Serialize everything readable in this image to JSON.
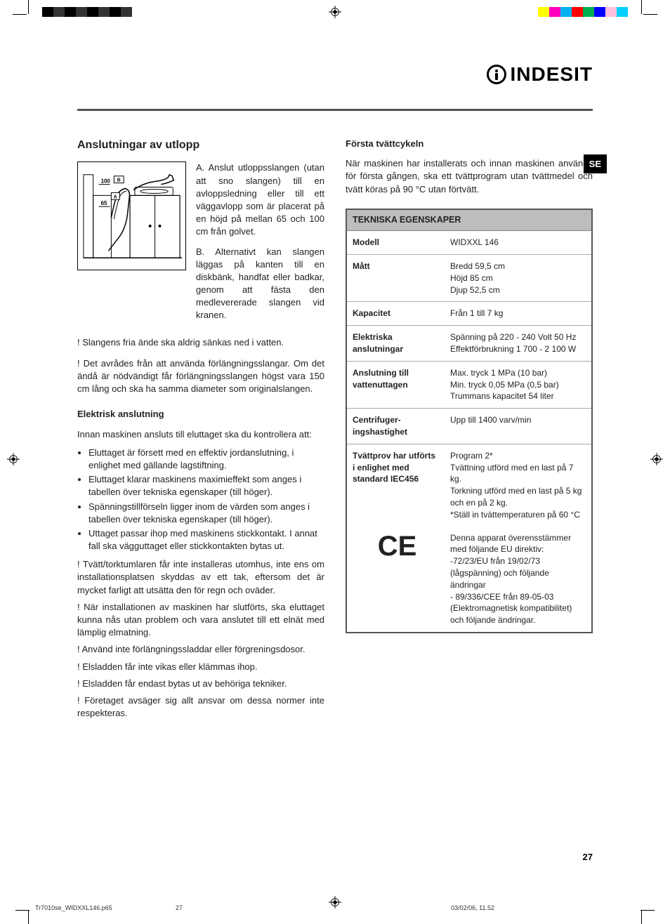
{
  "printer": {
    "left_bars": [
      "#000000",
      "#333333",
      "#000000",
      "#333333",
      "#000000",
      "#333333",
      "#000000",
      "#333333"
    ],
    "right_bars": [
      "#ffff00",
      "#ff00c0",
      "#00b0f0",
      "#ff0000",
      "#00b050",
      "#0000ff",
      "#ffc0e0",
      "#00d0ff"
    ]
  },
  "logo_text": "INDESIT",
  "lang_tab": "SE",
  "left_column": {
    "heading": "Anslutningar av utlopp",
    "diagram_text_a": "A. Anslut utloppsslangen (utan att sno slangen) till en avloppsledning eller till ett väggavlopp som är placerat på en höjd på mellan 65 och 100 cm från golvet.",
    "diagram_text_b": "B. Alternativt kan slangen läggas på kanten till en diskbänk, handfat eller badkar, genom att fästa den medlevererade slangen vid kranen.",
    "warn1": "! Slangens fria ände ska aldrig sänkas ned i vatten.",
    "warn2": "! Det avrådes från att använda förlängningsslangar. Om det ändå är nödvändigt får förlängningsslangen högst vara 150 cm lång och ska ha samma diameter som originalslangen.",
    "h3_electrical": "Elektrisk anslutning",
    "electrical_intro": "Innan maskinen ansluts till eluttaget ska du kontrollera att:",
    "bullets": [
      "Eluttaget är försett med en effektiv jordanslutning, i enlighet med gällande lagstiftning.",
      "Eluttaget klarar maskinens maximieffekt som anges i tabellen över tekniska egenskaper (till höger).",
      "Spänningstillförseln ligger inom de värden som anges i tabellen över tekniska egenskaper (till höger).",
      "Uttaget passar ihop med maskinens stickkontakt. I annat fall ska vägguttaget eller stickkontakten bytas ut."
    ],
    "warnings_after": [
      "! Tvätt/torktumlaren får inte installeras utomhus, inte ens om installationsplatsen skyddas av ett tak, eftersom det är mycket farligt att utsätta den för regn och oväder.",
      "! När installationen av maskinen har slutförts, ska eluttaget kunna nås utan problem och vara anslutet till ett elnät med lämplig elmatning.",
      "! Använd inte förlängningssladdar eller förgreningsdosor.",
      "! Elsladden får inte vikas eller klämmas ihop.",
      "! Elsladden får endast bytas ut av behöriga tekniker.",
      "! Företaget avsäger sig allt ansvar om dessa normer inte respekteras."
    ]
  },
  "right_column": {
    "h3_first": "Första tvättcykeln",
    "first_text": "När maskinen har installerats och innan maskinen används för första gången, ska ett tvättprogram utan tvättmedel och tvätt köras på 90 °C utan förtvätt.",
    "table_title": "TEKNISKA EGENSKAPER",
    "rows": [
      {
        "label": "Modell",
        "value": "WIDXXL 146"
      },
      {
        "label": "Mått",
        "value": "Bredd 59,5 cm\nHöjd 85 cm\nDjup 52,5 cm"
      },
      {
        "label": "Kapacitet",
        "value": "Från 1 till 7 kg"
      },
      {
        "label": "Elektriska anslutningar",
        "value": "Spänning på 220 - 240 Volt 50 Hz\nEffektförbrukning 1 700 - 2 100 W"
      },
      {
        "label": "Anslutning till vattenuttagen",
        "value": "Max. tryck 1 MPa (10 bar)\nMin. tryck 0,05 MPa (0,5 bar)\nTrummans kapacitet 54 liter"
      },
      {
        "label": "Centrifuger-ingshastighet",
        "value": "Upp till 1400 varv/min"
      },
      {
        "label": "Tvättprov har utförts i enlighet med standard IEC456",
        "value": "Program 2*\nTvättning utförd med en last på 7 kg.\nTorkning utförd med en last på 5 kg och en på 2 kg.\n*Ställ in tvättemperaturen på 60 °C"
      }
    ],
    "ce_text": "Denna apparat överensstämmer med följande EU direktiv:\n-72/23/EU från 19/02/73 (lågspänning) och följande ändringar\n- 89/336/CEE från 89-05-03 (Elektromagnetisk kompatibilitet) och följande ändringar."
  },
  "diagram_labels": {
    "h100": "100",
    "h65": "65",
    "a": "A",
    "b": "B"
  },
  "page_number": "27",
  "footer": {
    "filename": "Tr7010se_WIDXXL146.p65",
    "pagenum": "27",
    "datetime": "03/02/06, 11.52"
  }
}
